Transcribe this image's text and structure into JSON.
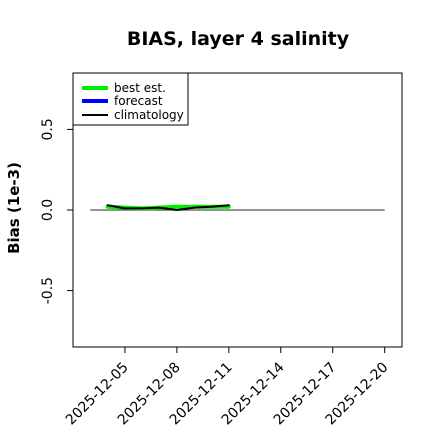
{
  "chart_data": {
    "type": "line",
    "title": "BIAS, layer 4 salinity",
    "xlabel": "",
    "ylabel": "Bias (1e-3)",
    "ylim": [
      -0.85,
      0.85
    ],
    "xlim": [
      "2025-12-02",
      "2025-12-21"
    ],
    "yticks": [
      -0.5,
      0.0,
      0.5
    ],
    "ytick_labels": [
      "-0.5",
      "0.0",
      "0.5"
    ],
    "xticks": [
      "2025-12-05",
      "2025-12-08",
      "2025-12-11",
      "2025-12-14",
      "2025-12-17",
      "2025-12-20"
    ],
    "highlighted_xtick": "2025-12-11",
    "highlight_color": "#228b22",
    "zero_line": true,
    "zero_line_extent": [
      "2025-12-03",
      "2025-12-20"
    ],
    "grid": false,
    "legend_position": "top-left",
    "series": [
      {
        "name": "best est.",
        "color": "#00ee00",
        "width": 4,
        "x": [
          "2025-12-04",
          "2025-12-05",
          "2025-12-06",
          "2025-12-07",
          "2025-12-08",
          "2025-12-09",
          "2025-12-10",
          "2025-12-11"
        ],
        "y": [
          0.02,
          0.015,
          0.01,
          0.015,
          0.02,
          0.02,
          0.02,
          0.02
        ]
      },
      {
        "name": "forecast",
        "color": "#0000ff",
        "width": 4,
        "x": [],
        "y": []
      },
      {
        "name": "climatology",
        "color": "#000000",
        "width": 2,
        "x": [
          "2025-12-04",
          "2025-12-05",
          "2025-12-06",
          "2025-12-07",
          "2025-12-08",
          "2025-12-09",
          "2025-12-10",
          "2025-12-11"
        ],
        "y": [
          0.03,
          0.01,
          0.01,
          0.015,
          0.0,
          0.015,
          0.02,
          0.03
        ]
      }
    ]
  }
}
